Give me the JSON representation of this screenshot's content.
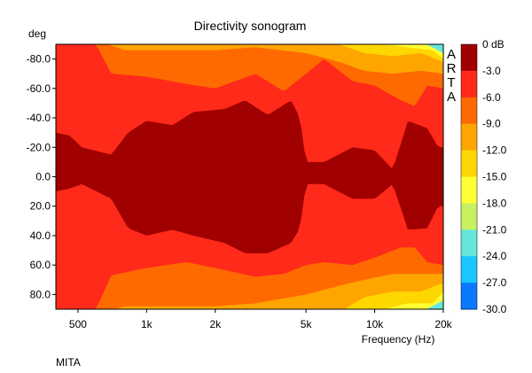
{
  "chart_data": {
    "type": "heatmap",
    "title": "Directivity sonogram",
    "xlabel": "Frequency (Hz)",
    "ylabel": "deg",
    "footer": "MITA",
    "watermark": [
      "A",
      "R",
      "T",
      "A"
    ],
    "x_scale": "log",
    "xlim": [
      400,
      20000
    ],
    "ylim": [
      -90,
      90
    ],
    "x_ticks": [
      {
        "value": 500,
        "label": "500"
      },
      {
        "value": 1000,
        "label": "1k"
      },
      {
        "value": 2000,
        "label": "2k"
      },
      {
        "value": 5000,
        "label": "5k"
      },
      {
        "value": 10000,
        "label": "10k"
      },
      {
        "value": 20000,
        "label": "20k"
      }
    ],
    "y_ticks": [
      {
        "value": -80,
        "label": "-80.0"
      },
      {
        "value": -60,
        "label": "-60.0"
      },
      {
        "value": -40,
        "label": "-40.0"
      },
      {
        "value": -20,
        "label": "-20.0"
      },
      {
        "value": 0,
        "label": "0.0"
      },
      {
        "value": 20,
        "label": "20.0"
      },
      {
        "value": 40,
        "label": "40.0"
      },
      {
        "value": 60,
        "label": "60.0"
      },
      {
        "value": 80,
        "label": "80.0"
      }
    ],
    "colorbar": {
      "levels": [
        {
          "label": "0 dB",
          "color": "#a00000"
        },
        {
          "label": "-3.0",
          "color": "#ff2a1a"
        },
        {
          "label": "-6.0",
          "color": "#ff6a00"
        },
        {
          "label": "-9.0",
          "color": "#ffa500"
        },
        {
          "label": "-12.0",
          "color": "#ffd700"
        },
        {
          "label": "-15.0",
          "color": "#ffff33"
        },
        {
          "label": "-18.0",
          "color": "#c8f060"
        },
        {
          "label": "-21.0",
          "color": "#64e6dc"
        },
        {
          "label": "-24.0",
          "color": "#19c6ff"
        },
        {
          "label": "-27.0",
          "color": "#0a78ff"
        },
        {
          "label": "-30.0",
          "color": "#0000ff"
        }
      ]
    },
    "series": [
      {
        "band": "0 to -3 dB",
        "boundary_top": [
          [
            400,
            -30
          ],
          [
            460,
            -28
          ],
          [
            520,
            -20
          ],
          [
            700,
            -15
          ],
          [
            830,
            -30
          ],
          [
            1000,
            -38
          ],
          [
            1300,
            -35
          ],
          [
            1600,
            -44
          ],
          [
            2200,
            -46
          ],
          [
            2700,
            -52
          ],
          [
            3400,
            -42
          ],
          [
            4300,
            -52
          ],
          [
            4700,
            -40
          ],
          [
            5000,
            -10
          ],
          [
            6000,
            -10
          ],
          [
            8000,
            -20
          ],
          [
            10000,
            -18
          ],
          [
            12000,
            -5
          ],
          [
            14000,
            -38
          ],
          [
            17000,
            -33
          ],
          [
            19000,
            -20
          ],
          [
            20000,
            -20
          ]
        ],
        "boundary_bottom": [
          [
            400,
            10
          ],
          [
            460,
            8
          ],
          [
            520,
            5
          ],
          [
            700,
            15
          ],
          [
            830,
            35
          ],
          [
            1000,
            40
          ],
          [
            1300,
            36
          ],
          [
            1600,
            40
          ],
          [
            2200,
            45
          ],
          [
            2700,
            52
          ],
          [
            3400,
            52
          ],
          [
            4300,
            45
          ],
          [
            4700,
            35
          ],
          [
            5000,
            5
          ],
          [
            6000,
            5
          ],
          [
            8000,
            15
          ],
          [
            10000,
            15
          ],
          [
            12000,
            5
          ],
          [
            14000,
            36
          ],
          [
            17000,
            35
          ],
          [
            19000,
            20
          ],
          [
            20000,
            20
          ]
        ]
      },
      {
        "band": "-3 to -6 dB",
        "boundary_top": [
          [
            400,
            -90
          ],
          [
            600,
            -90
          ],
          [
            700,
            -70
          ],
          [
            1000,
            -68
          ],
          [
            1500,
            -63
          ],
          [
            2000,
            -60
          ],
          [
            3000,
            -70
          ],
          [
            4000,
            -58
          ],
          [
            5000,
            -70
          ],
          [
            6000,
            -80
          ],
          [
            8000,
            -65
          ],
          [
            10000,
            -62
          ],
          [
            13000,
            -52
          ],
          [
            15000,
            -48
          ],
          [
            17000,
            -62
          ],
          [
            20000,
            -60
          ]
        ],
        "boundary_bottom": [
          [
            400,
            90
          ],
          [
            600,
            90
          ],
          [
            700,
            67
          ],
          [
            1000,
            62
          ],
          [
            1500,
            58
          ],
          [
            2000,
            62
          ],
          [
            3000,
            68
          ],
          [
            4000,
            66
          ],
          [
            5000,
            60
          ],
          [
            6000,
            58
          ],
          [
            8000,
            60
          ],
          [
            10000,
            55
          ],
          [
            13000,
            48
          ],
          [
            15000,
            48
          ],
          [
            17000,
            58
          ],
          [
            20000,
            60
          ]
        ]
      }
    ]
  }
}
